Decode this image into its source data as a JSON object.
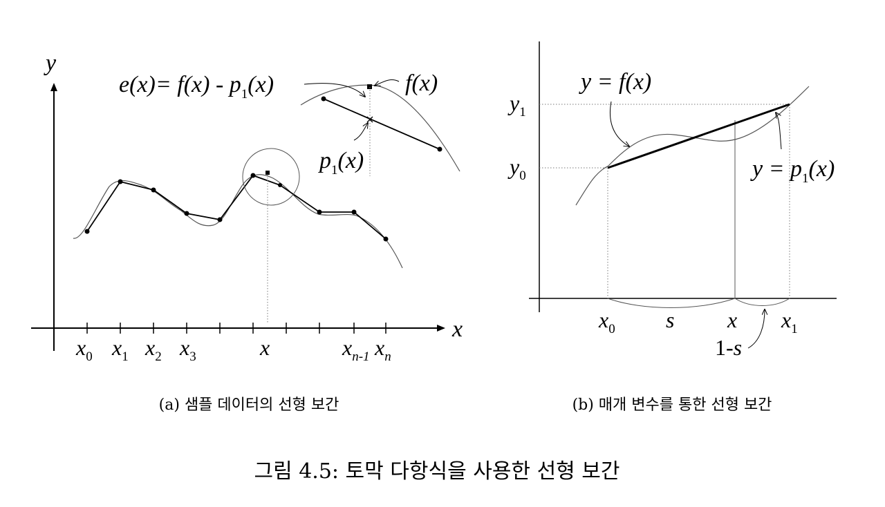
{
  "panel_a": {
    "y_axis_label": "y",
    "x_axis_label": "x",
    "error_eq": {
      "lhs": "e(x)= ",
      "f": "f",
      "fx": "(x) - ",
      "p": "p",
      "sub": "1",
      "px": "(x)"
    },
    "inset_f_label": {
      "f": "f",
      "rest": "(x)"
    },
    "inset_p_label": {
      "p": "p",
      "sub": "1",
      "rest": "(x)"
    },
    "ticks": {
      "x0": {
        "main": "x",
        "sub": "0"
      },
      "x1": {
        "main": "x",
        "sub": "1"
      },
      "x2": {
        "main": "x",
        "sub": "2"
      },
      "x3": {
        "main": "x",
        "sub": "3"
      },
      "x": {
        "main": "x"
      },
      "xn1": {
        "main": "x",
        "sub": "n-1"
      },
      "xn": {
        "main": "x",
        "sub": "n"
      }
    },
    "caption": "(a) 샘플 데이터의 선형 보간"
  },
  "panel_b": {
    "y_f_label": {
      "prefix": "y = ",
      "f": "f",
      "rest": "(x)"
    },
    "y_p_label": {
      "prefix": "y = ",
      "p": "p",
      "sub": "1",
      "rest": "(x)"
    },
    "y1": {
      "main": "y",
      "sub": "1"
    },
    "y0": {
      "main": "y",
      "sub": "0"
    },
    "x0": {
      "main": "x",
      "sub": "0"
    },
    "s": "s",
    "x": "x",
    "x1": {
      "main": "x",
      "sub": "1"
    },
    "one_minus_s": {
      "one": "1-",
      "s": "s"
    },
    "caption": "(b) 매개 변수를 통한 선형 보간"
  },
  "figure_caption": "그림 4.5: 토막 다항식을 사용한 선형 보간"
}
